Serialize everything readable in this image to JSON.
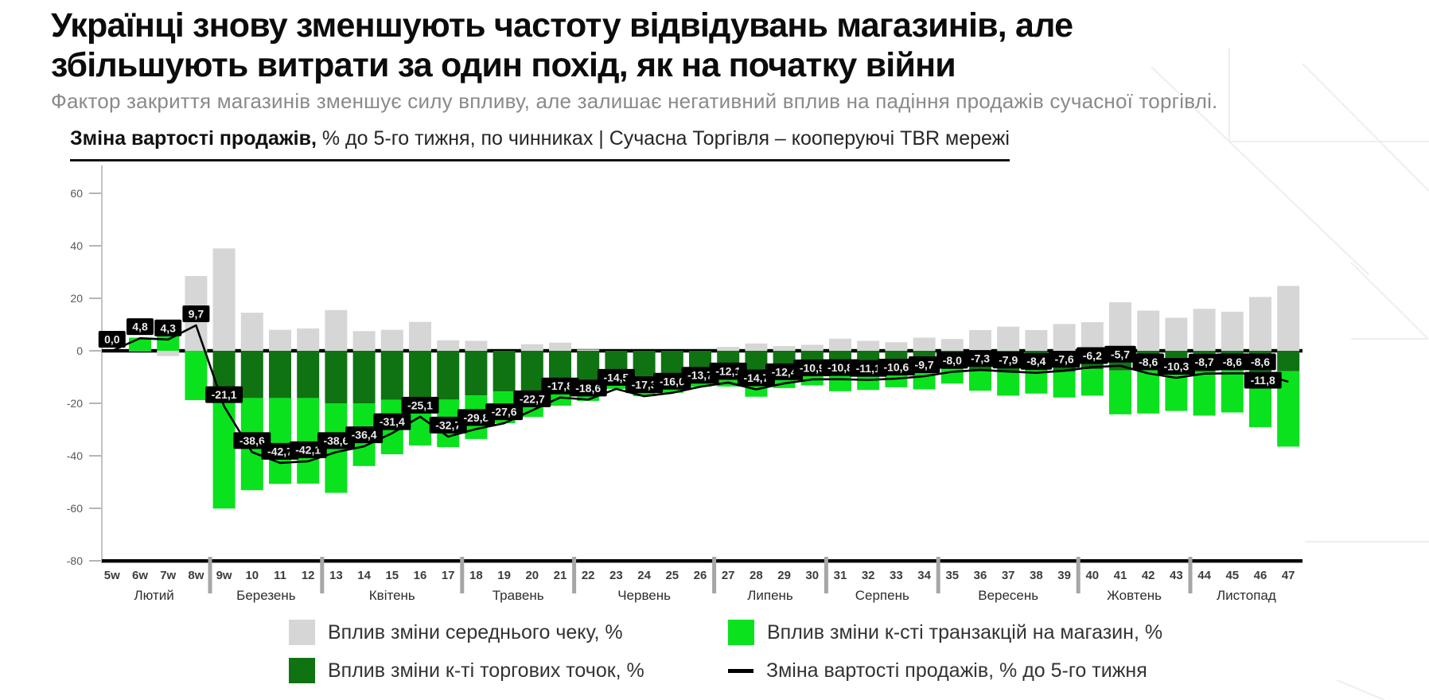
{
  "header": {
    "title_line1": "Українці знову зменшують частоту відвідувань магазинів, але",
    "title_line2": "збільшують витрати за один похід, як на початку війни",
    "subtitle": "Фактор закриття магазинів зменшує силу впливу, але залишає негативний вплив на падіння продажів сучасної торгівлі."
  },
  "chart_header": {
    "bold": "Зміна вартості продажів,",
    "rest": " % до 5-го тижня, по чинниках | Сучасна Торгівля  – кооперуючі TBR мережі"
  },
  "chart_data": {
    "type": "bar",
    "stacked": true,
    "title": "Зміна вартості продажів, % до 5-го тижня, по чинниках",
    "ylim": [
      -80,
      60
    ],
    "yticks": [
      60,
      40,
      20,
      0,
      -20,
      -40,
      -60,
      -80
    ],
    "grid": false,
    "legend_position": "bottom",
    "x": [
      "5w",
      "6w",
      "7w",
      "8w",
      "9w",
      "10",
      "11",
      "12",
      "13",
      "14",
      "15",
      "16",
      "17",
      "18",
      "19",
      "20",
      "21",
      "22",
      "23",
      "24",
      "25",
      "26",
      "27",
      "28",
      "29",
      "30",
      "31",
      "32",
      "33",
      "34",
      "35",
      "36",
      "37",
      "38",
      "39",
      "40",
      "41",
      "42",
      "43",
      "44",
      "45",
      "46",
      "47"
    ],
    "months": [
      {
        "label": "Лютий",
        "weeks": 4
      },
      {
        "label": "Березень",
        "weeks": 4
      },
      {
        "label": "Квітень",
        "weeks": 5
      },
      {
        "label": "Травень",
        "weeks": 4
      },
      {
        "label": "Червень",
        "weeks": 5
      },
      {
        "label": "Липень",
        "weeks": 4
      },
      {
        "label": "Серпень",
        "weeks": 4
      },
      {
        "label": "Вересень",
        "weeks": 5
      },
      {
        "label": "Жовтень",
        "weeks": 4
      },
      {
        "label": "Листопад",
        "weeks": 4
      }
    ],
    "series": [
      {
        "name": "Вплив зміни середнього чеку, %",
        "color": "#d6d6d6",
        "values": [
          0,
          -0.2,
          -2.0,
          28.5,
          39.0,
          14.5,
          8.0,
          8.5,
          15.5,
          7.5,
          8.0,
          11.0,
          4.0,
          3.8,
          0,
          2.5,
          3.1,
          0.5,
          0,
          0,
          0,
          0,
          1.5,
          2.8,
          1.8,
          2.3,
          4.6,
          3.8,
          3.3,
          5.0,
          4.5,
          7.9,
          9.2,
          7.9,
          10.2,
          10.9,
          18.5,
          15.3,
          12.6,
          16.0,
          14.9,
          20.5,
          24.7
        ]
      },
      {
        "name": "Вплив зміни к-ті торгових точок, %",
        "color": "#0f7312",
        "values": [
          0,
          0,
          0,
          0,
          -14.0,
          -18.0,
          -18.0,
          -18.0,
          -20.0,
          -20.0,
          -18.7,
          -18.3,
          -18.6,
          -17.0,
          -15.5,
          -15.2,
          -14.0,
          -15.4,
          -9.3,
          -10.2,
          -11.3,
          -11.8,
          -11.3,
          -12.3,
          -9.8,
          -9.2,
          -9.5,
          -9.8,
          -8.8,
          -8.3,
          -7.0,
          -7.5,
          -8.0,
          -7.5,
          -8.0,
          -7.0,
          -7.5,
          -7.5,
          -7.0,
          -8.0,
          -7.5,
          -8.0,
          -7.8
        ]
      },
      {
        "name": "Вплив зміни к-сті транзакцій на магазин, %",
        "color": "#0ae21e",
        "values": [
          0,
          5.0,
          6.3,
          -18.8,
          -46.1,
          -35.1,
          -32.7,
          -32.6,
          -34.1,
          -23.9,
          -20.7,
          -17.8,
          -18.1,
          -16.6,
          -12.1,
          -10.0,
          -6.9,
          -3.7,
          -5.2,
          -7.1,
          -4.7,
          -1.9,
          -2.3,
          -5.2,
          -4.4,
          -4.0,
          -5.9,
          -5.1,
          -5.1,
          -6.4,
          -5.5,
          -7.7,
          -9.1,
          -8.8,
          -9.8,
          -10.1,
          -16.7,
          -16.4,
          -15.9,
          -16.7,
          -16.0,
          -21.1,
          -28.7
        ]
      }
    ],
    "line": {
      "name": "Зміна вартості продажів, % до 5-го тижня",
      "color": "#000000",
      "values": [
        0.0,
        4.8,
        4.3,
        9.7,
        -21.1,
        -38.6,
        -42.7,
        -42.1,
        -38.6,
        -36.4,
        -31.4,
        -25.1,
        -32.7,
        -29.8,
        -27.6,
        -22.7,
        -17.8,
        -18.6,
        -14.5,
        -17.3,
        -16.0,
        -13.7,
        -12.1,
        -14.7,
        -12.4,
        -10.9,
        -10.8,
        -11.1,
        -10.6,
        -9.7,
        -8.0,
        -7.3,
        -7.9,
        -8.4,
        -7.6,
        -6.2,
        -5.7,
        -8.6,
        -10.3,
        -8.7,
        -8.6,
        -8.6,
        -11.8
      ],
      "labels": [
        "0,0",
        "4,8",
        "4,3",
        "9,7",
        "-21,1",
        "-38,6",
        "-42,7",
        "-42,1",
        "-38,6",
        "-36,4",
        "-31,4",
        "-25,1",
        "-32,7",
        "-29,8",
        "-27,6",
        "-22,7",
        "-17,8",
        "-18,6",
        "-14,5",
        "-17,3",
        "-16,0",
        "-13,7",
        "-12,1",
        "-14,7",
        "-12,4",
        "-10,9",
        "-10,8",
        "-11,1",
        "-10,6",
        "-9,7",
        "-8,0",
        "-7,3",
        "-7,9",
        "-8,4",
        "-7,6",
        "-6,2",
        "-5,7",
        "-8,6",
        "-10,3",
        "-8,7",
        "-8,6",
        "-8,6",
        "-11,8"
      ]
    }
  }
}
